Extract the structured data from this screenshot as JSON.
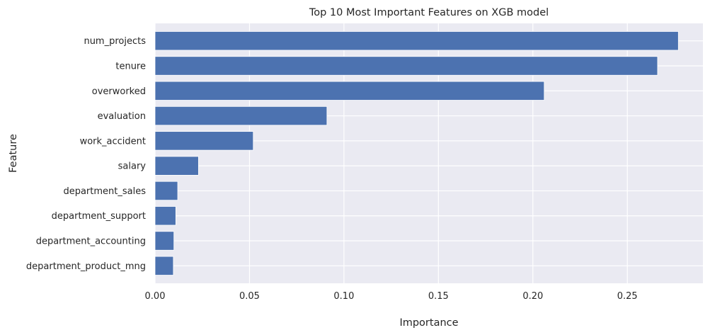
{
  "chart_data": {
    "type": "bar",
    "orientation": "horizontal",
    "title": "Top 10 Most Important Features on XGB model",
    "xlabel": "Importance",
    "ylabel": "Feature",
    "categories": [
      "num_projects",
      "tenure",
      "overworked",
      "evaluation",
      "work_accident",
      "salary",
      "department_sales",
      "department_support",
      "department_accounting",
      "department_product_mng"
    ],
    "values": [
      0.277,
      0.266,
      0.206,
      0.091,
      0.052,
      0.023,
      0.012,
      0.011,
      0.01,
      0.0097
    ],
    "xlim": [
      0,
      0.29
    ],
    "xticks": [
      0.0,
      0.05,
      0.1,
      0.15,
      0.2,
      0.25
    ],
    "xtick_labels": [
      "0.00",
      "0.05",
      "0.10",
      "0.15",
      "0.20",
      "0.25"
    ],
    "grid": true,
    "bar_color": "#4c72b0",
    "plot_background": "#eaeaf2",
    "grid_color": "#ffffff"
  }
}
